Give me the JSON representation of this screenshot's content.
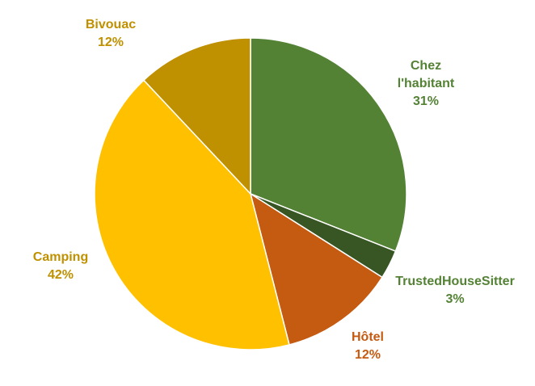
{
  "chart_data": {
    "type": "pie",
    "title": "",
    "slices": [
      {
        "label": [
          "Chez",
          "l'habitant"
        ],
        "value": 31,
        "display": "31%",
        "color": "#548235"
      },
      {
        "label": [
          "TrustedHouseSitter"
        ],
        "value": 3,
        "display": "3%",
        "color": "#375623"
      },
      {
        "label": [
          "Hôtel"
        ],
        "value": 12,
        "display": "12%",
        "color": "#C55A11"
      },
      {
        "label": [
          "Camping"
        ],
        "value": 42,
        "display": "42%",
        "color": "#FFC000"
      },
      {
        "label": [
          "Bivouac"
        ],
        "value": 12,
        "display": "12%",
        "color": "#BF9000"
      }
    ],
    "label_colors": {
      "Chez l'habitant": "#548235",
      "TrustedHouseSitter": "#548235",
      "Hôtel": "#C55A11",
      "Camping": "#BF9000",
      "Bivouac": "#BF9000"
    },
    "start_angle": "12 o'clock",
    "direction": "clockwise",
    "legend": "none"
  }
}
